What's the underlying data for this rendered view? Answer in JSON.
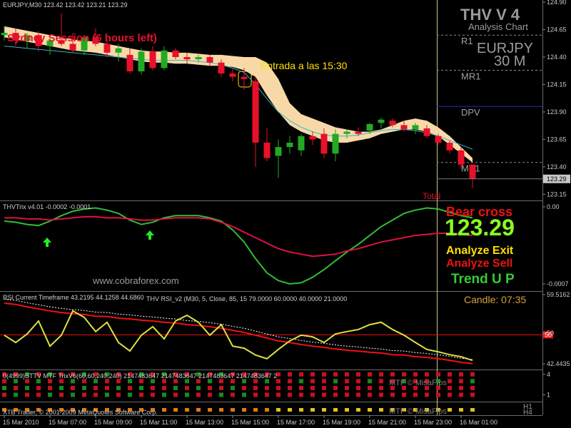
{
  "chart_data": [
    {
      "type": "candlestick",
      "title": "EURJPY,M30  123.42 123.42 123.21 123.29",
      "categories": [
        "15 Mar 2010",
        null,
        null,
        null,
        "15 Mar 07:00",
        null,
        null,
        null,
        "15 Mar 09:00",
        null,
        null,
        null,
        "15 Mar 11:00",
        null,
        null,
        null,
        "15 Mar 13:00",
        null,
        null,
        null,
        "15 Mar 15:00",
        null,
        null,
        null,
        "15 Mar 17:00",
        null,
        null,
        null,
        "15 Mar 19:00",
        null,
        null,
        null,
        "15 Mar 21:00",
        null,
        null,
        null,
        "15 Mar 23:00",
        null,
        null,
        null,
        "16 Mar 01:00",
        null
      ],
      "open": [
        124.6,
        124.62,
        124.55,
        124.6,
        124.5,
        124.55,
        124.52,
        124.46,
        124.58,
        124.52,
        124.44,
        124.42,
        124.27,
        124.45,
        124.3,
        124.46,
        124.4,
        124.38,
        124.4,
        124.35,
        124.25,
        124.22,
        124.18,
        123.62,
        123.5,
        123.58,
        123.55,
        123.68,
        123.7,
        123.52,
        123.7,
        123.72,
        123.73,
        123.8,
        123.82,
        123.78,
        123.74,
        123.75,
        123.68,
        123.62,
        123.55,
        123.42
      ],
      "high": [
        124.68,
        124.66,
        124.62,
        124.64,
        124.58,
        124.8,
        124.62,
        124.6,
        124.66,
        124.56,
        124.52,
        124.48,
        124.48,
        124.5,
        124.5,
        124.48,
        124.44,
        124.42,
        124.42,
        124.38,
        124.3,
        124.3,
        124.22,
        123.75,
        123.65,
        123.68,
        123.7,
        123.72,
        123.75,
        123.74,
        123.74,
        123.76,
        123.8,
        123.85,
        123.84,
        123.82,
        123.8,
        123.78,
        123.7,
        123.64,
        123.58,
        123.42
      ],
      "low": [
        124.55,
        124.5,
        124.48,
        124.45,
        124.42,
        124.5,
        124.44,
        124.42,
        124.5,
        124.4,
        124.36,
        124.25,
        124.24,
        124.28,
        124.28,
        124.38,
        124.34,
        124.35,
        124.32,
        124.22,
        124.18,
        124.1,
        123.4,
        123.45,
        123.3,
        123.52,
        123.5,
        123.6,
        123.48,
        123.45,
        123.66,
        123.68,
        123.7,
        123.75,
        123.76,
        123.72,
        123.7,
        123.66,
        123.6,
        123.52,
        123.38,
        123.21
      ],
      "close": [
        124.62,
        124.55,
        124.6,
        124.5,
        124.55,
        124.52,
        124.46,
        124.58,
        124.52,
        124.44,
        124.48,
        124.27,
        124.45,
        124.3,
        124.46,
        124.4,
        124.38,
        124.4,
        124.35,
        124.25,
        124.22,
        124.2,
        123.62,
        123.48,
        123.58,
        123.62,
        123.68,
        123.65,
        123.52,
        123.7,
        123.72,
        123.7,
        123.79,
        123.83,
        123.78,
        123.74,
        123.78,
        123.68,
        123.62,
        123.55,
        123.42,
        123.29
      ],
      "up_color": "#22aa22",
      "down_color": "#e8102a",
      "cloud": {
        "color": "#f7d9a8",
        "upper": [
          124.68,
          124.66,
          124.64,
          124.62,
          124.6,
          124.58,
          124.56,
          124.55,
          124.54,
          124.52,
          124.5,
          124.48,
          124.46,
          124.45,
          124.45,
          124.44,
          124.44,
          124.43,
          124.42,
          124.42,
          124.41,
          124.4,
          124.4,
          124.35,
          124.2,
          123.98,
          123.88,
          123.84,
          123.8,
          123.76,
          123.74,
          123.72,
          123.72,
          123.74,
          123.78,
          123.82,
          123.84,
          123.82,
          123.76,
          123.68,
          123.58,
          123.48
        ],
        "lower": [
          124.58,
          124.56,
          124.54,
          124.52,
          124.5,
          124.48,
          124.46,
          124.45,
          124.44,
          124.42,
          124.4,
          124.38,
          124.36,
          124.35,
          124.35,
          124.34,
          124.34,
          124.33,
          124.32,
          124.32,
          124.31,
          124.28,
          124.22,
          124.05,
          123.9,
          123.78,
          123.72,
          123.68,
          123.64,
          123.62,
          123.62,
          123.64,
          123.66,
          123.7,
          123.72,
          123.74,
          123.74,
          123.72,
          123.68,
          123.6,
          123.52,
          123.44
        ]
      },
      "ma": {
        "color": "#35b5c8",
        "values": [
          124.5,
          124.49,
          124.48,
          124.47,
          124.46,
          124.45,
          124.44,
          124.43,
          124.42,
          124.41,
          124.4,
          124.39,
          124.38,
          124.37,
          124.37,
          124.37,
          124.37,
          124.36,
          124.35,
          124.33,
          124.3,
          124.26,
          124.15,
          124.02,
          123.9,
          123.82,
          123.76,
          123.72,
          123.69,
          123.68,
          123.68,
          123.69,
          123.71,
          123.73,
          123.74,
          123.74,
          123.73,
          123.71,
          123.68,
          123.64,
          123.6,
          123.56
        ]
      },
      "ylim": [
        123.1,
        124.92
      ],
      "yticks": [
        {
          "value": 124.9,
          "label": "124.90"
        },
        124.65,
        {
          "value": 124.4,
          "label": "124.40"
        },
        124.15,
        {
          "value": 123.9,
          "label": "123.90"
        },
        123.65,
        {
          "value": 123.4,
          "label": "123.40"
        },
        123.15
      ],
      "last_price": 123.29,
      "levels": [
        {
          "label": "R1",
          "value": 124.6,
          "color": "#8a8a8a",
          "dash": true
        },
        {
          "label": "MR1",
          "value": 124.28,
          "color": "#8a8a8a",
          "dash": true
        },
        {
          "label": "DPV",
          "value": 123.95,
          "color": "#2030c0",
          "dash": false
        },
        {
          "label": "MS1",
          "value": 123.44,
          "color": "#8a8a8a",
          "dash": true
        }
      ],
      "header": {
        "name": "THV V 4",
        "subtitle": "Analysis Chart",
        "symbol": "EURJPY",
        "period": "30 M"
      },
      "annotations": [
        {
          "text": "Sydney Session (6 hours left)",
          "color": "#e8102a"
        },
        {
          "text": "Entrada a las 15:30",
          "color": "#ffe000"
        },
        {
          "text": "Total",
          "color": "#e8102a"
        }
      ]
    },
    {
      "type": "line",
      "title": "THVTrix v4.01 -0.0002 -0.0001",
      "ylim": [
        -0.000765,
        4.5e-05
      ],
      "yticks": [
        {
          "value": 0,
          "label": "0.00"
        },
        -0.0007
      ],
      "series": [
        {
          "color": "#33bb33",
          "values": [
            -0.00013,
            -0.00014,
            -0.00016,
            -0.00017,
            -0.00013,
            -8e-05,
            -4e-05,
            -2e-05,
            -1e-05,
            -3e-05,
            -6e-05,
            -0.00012,
            -0.00016,
            -0.00014,
            -0.0001,
            -8e-05,
            -8e-05,
            -8e-05,
            -0.0001,
            -0.00013,
            -0.00021,
            -0.00032,
            -0.00047,
            -0.0006,
            -0.00067,
            -0.0007,
            -0.00069,
            -0.00064,
            -0.00057,
            -0.00049,
            -0.00041,
            -0.00034,
            -0.00026,
            -0.00018,
            -0.00012,
            -6e-05,
            -3e-05,
            -1e-05,
            -2e-05,
            -5e-05,
            -8e-05,
            -0.0001
          ]
        },
        {
          "color": "#dd1144",
          "values": [
            -0.0001,
            -0.0001,
            -0.00011,
            -0.00011,
            -0.00012,
            -0.00011,
            -0.0001,
            -9e-05,
            -9e-05,
            -0.0001,
            -0.0001,
            -0.00011,
            -0.00012,
            -0.00012,
            -0.00011,
            -0.0001,
            -0.0001,
            -0.0001,
            -0.00011,
            -0.00014,
            -0.00018,
            -0.00023,
            -0.00028,
            -0.00033,
            -0.00038,
            -0.00041,
            -0.00043,
            -0.00045,
            -0.00044,
            -0.00043,
            -0.0004,
            -0.00038,
            -0.00035,
            -0.00032,
            -0.0003,
            -0.00028,
            -0.00026,
            -0.00025,
            -0.00024,
            -0.00024,
            -0.00025,
            -0.00026
          ]
        }
      ],
      "annotations": [
        {
          "text": "Bear cross",
          "color": "#ee1111"
        },
        {
          "text": "123.29",
          "color": "#88ff22"
        },
        {
          "text": "Analyze Exit",
          "color": "#ffe000"
        },
        {
          "text": "Analyze Sell",
          "color": "#ee1111"
        },
        {
          "text": "Trend U P",
          "color": "#33cc33"
        },
        {
          "text": "www.cobraforex.com",
          "color": "#9a9a9a"
        }
      ]
    },
    {
      "type": "line",
      "title": "RSI Current Timeframe 43.2195 44.1258 44.6860",
      "subtitle": "THV RSI_v2  (M30,  5,  Close,  85,  15 79.0000 60.0000 40.0000 21.0000",
      "ylim": [
        41.04,
        60.04
      ],
      "yticks": [
        59.5162,
        50,
        42.4435
      ],
      "marker": {
        "value": 49.6,
        "label": "50",
        "color": "#ee1111"
      },
      "series": [
        {
          "color": "#ffffff",
          "dash": true,
          "values": [
            58.4,
            58.1,
            57.5,
            57.0,
            56.5,
            56.1,
            55.8,
            55.6,
            55.2,
            55.1,
            54.7,
            54.5,
            54.2,
            54.0,
            53.7,
            53.5,
            53.1,
            52.9,
            52.6,
            52.2,
            51.7,
            51.2,
            50.5,
            49.8,
            49.1,
            48.7,
            48.2,
            47.8,
            47.5,
            47.1,
            46.8,
            46.6,
            46.3,
            46.1,
            45.7,
            45.6,
            45.2,
            45.0,
            44.7,
            44.3,
            43.8,
            43.5
          ]
        },
        {
          "color": "#ee1111",
          "values": [
            57.4,
            57.1,
            56.5,
            56.0,
            55.5,
            55.1,
            54.8,
            54.6,
            54.2,
            54.1,
            53.7,
            53.5,
            53.2,
            53.0,
            52.7,
            52.5,
            52.1,
            51.9,
            51.6,
            51.2,
            50.7,
            50.2,
            49.5,
            48.8,
            48.1,
            47.7,
            47.2,
            46.8,
            46.5,
            46.1,
            45.8,
            45.6,
            45.3,
            45.1,
            44.7,
            44.6,
            44.2,
            44.0,
            43.7,
            43.3,
            42.8,
            42.5
          ]
        },
        {
          "color": "#e0e040",
          "values": [
            49.5,
            47.7,
            49.8,
            53.0,
            46.8,
            49.5,
            55.5,
            53.9,
            50.4,
            52.7,
            47.7,
            45.6,
            49.5,
            51.6,
            48.6,
            53.0,
            54.4,
            52.7,
            49.5,
            52.1,
            46.8,
            46.3,
            44.6,
            43.7,
            46.0,
            48.1,
            49.5,
            49.1,
            47.7,
            49.8,
            50.4,
            50.9,
            52.1,
            52.7,
            50.9,
            49.5,
            47.7,
            46.0,
            45.4,
            44.7,
            44.2,
            43.3
          ]
        }
      ],
      "annotations": [
        {
          "text": "Candle:  07:35",
          "color": "#d8a040"
        }
      ]
    },
    {
      "type": "mtf",
      "title": "0(4999)STTV MTF TrixV6(60,60,240,240) 2147483647 2147483647 2147483647 2147483647 2",
      "ylim": [
        0,
        4.5
      ],
      "yticks": [
        4,
        1
      ],
      "annotations": [
        {
          "text": "MTF © MisaFips",
          "color": "#7a7a7a"
        }
      ]
    },
    {
      "type": "mtf",
      "title": "XTB Trader, © 2001-2009 MetaQuotes Software Corp.",
      "annotations": [
        {
          "text": "MTF © MisaFips",
          "color": "#7a7a7a"
        },
        {
          "text": "H1",
          "color": "#9a9a9a"
        },
        {
          "text": "H4",
          "color": "#9a9a9a"
        }
      ]
    }
  ]
}
